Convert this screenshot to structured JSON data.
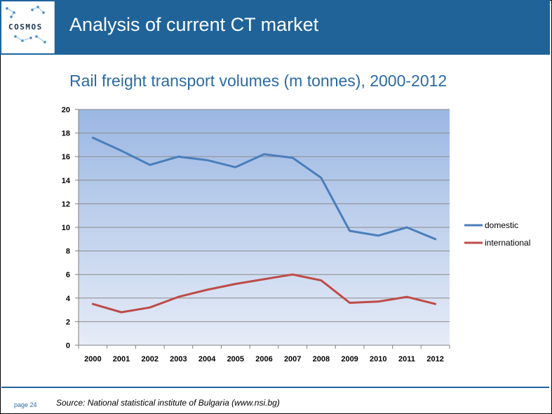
{
  "header": {
    "logo_text": "COSMOS",
    "title": "Analysis of current CT market"
  },
  "subtitle": "Rail freight transport volumes (m tonnes), 2000-2012",
  "footer": {
    "page": "page 24",
    "source": "Source: National statistical institute of Bulgaria (www.nsi.bg)"
  },
  "colors": {
    "header_bg": "#1f6399",
    "domestic": "#4a7ebb",
    "international": "#be4b48"
  },
  "chart_data": {
    "type": "line",
    "x": [
      "2000",
      "2001",
      "2002",
      "2003",
      "2004",
      "2005",
      "2006",
      "2007",
      "2008",
      "2009",
      "2010",
      "2011",
      "2012"
    ],
    "series": [
      {
        "name": "domestic",
        "values": [
          17.6,
          16.5,
          15.3,
          16.0,
          15.7,
          15.1,
          16.2,
          15.9,
          14.2,
          9.7,
          9.3,
          10.0,
          9.0
        ]
      },
      {
        "name": "international",
        "values": [
          3.5,
          2.8,
          3.2,
          4.1,
          4.7,
          5.2,
          5.6,
          6.0,
          5.5,
          3.6,
          3.7,
          4.1,
          3.5
        ]
      }
    ],
    "ylim": [
      0,
      20
    ],
    "yticks": [
      "0",
      "2",
      "4",
      "6",
      "8",
      "10",
      "12",
      "14",
      "16",
      "18",
      "20"
    ],
    "grid": true,
    "legend": "right"
  }
}
